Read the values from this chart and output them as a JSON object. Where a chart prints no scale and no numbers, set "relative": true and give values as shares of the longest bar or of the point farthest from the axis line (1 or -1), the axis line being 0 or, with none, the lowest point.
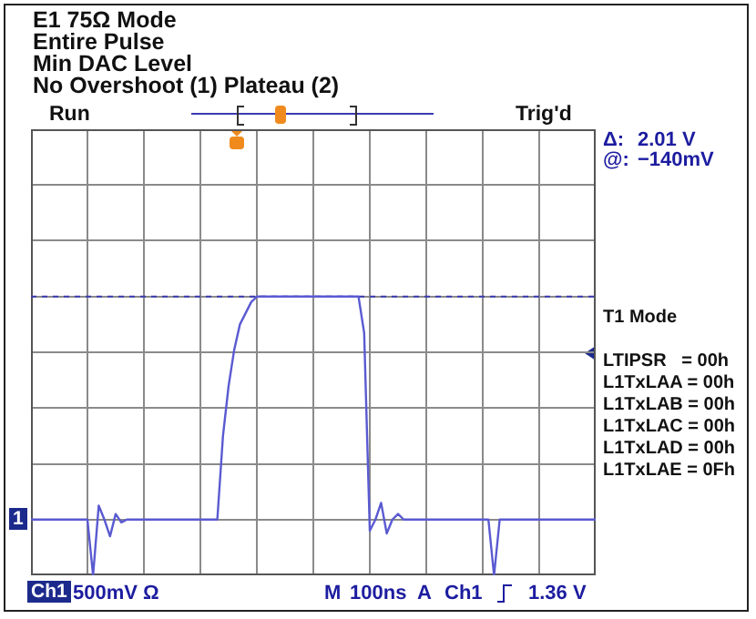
{
  "chart_data": {
    "type": "line",
    "title": "E1 75Ω  Mode",
    "categories": [
      null,
      null,
      null,
      null,
      null,
      null,
      null,
      null,
      null,
      null,
      null,
      null,
      null,
      null,
      null,
      null,
      null,
      null,
      null,
      null,
      null,
      null,
      null,
      null,
      null,
      null,
      null,
      null,
      null,
      null,
      null,
      null,
      null,
      null,
      null,
      null,
      null,
      null,
      null,
      null,
      null,
      null,
      null,
      null,
      null,
      null,
      null,
      null,
      null,
      null,
      null,
      null,
      null,
      null,
      null,
      null,
      null,
      null,
      null,
      null,
      null,
      null,
      null,
      null,
      null,
      null,
      null,
      null,
      null,
      null,
      null,
      null,
      null,
      null,
      null,
      null,
      null,
      null,
      null,
      null,
      null,
      null,
      null,
      null,
      null,
      null,
      null,
      null,
      null,
      null,
      null,
      null,
      null,
      null,
      null,
      null,
      null,
      null,
      null,
      null,
      null
    ],
    "values": [
      0.2,
      0.2,
      0.2,
      0.2,
      0.2,
      0.2,
      0.2,
      0.2,
      0.2,
      0.2,
      0.2,
      0,
      0.25,
      0.2,
      0.14,
      0.22,
      0.19,
      0.2,
      0.2,
      0.2,
      0.2,
      0.2,
      0.2,
      0.2,
      0.2,
      0.2,
      0.2,
      0.2,
      0.2,
      0.2,
      0.2,
      0.2,
      0.2,
      0.2,
      0.5,
      0.68,
      0.81,
      0.9,
      0.94,
      0.98,
      1,
      1,
      1,
      1,
      1,
      1,
      1,
      1,
      1,
      1,
      1,
      1,
      1,
      1,
      1,
      1,
      1,
      1,
      1,
      0.87,
      0.16,
      0.2,
      0.26,
      0.15,
      0.2,
      0.22,
      0.2,
      0.2,
      0.2,
      0.2,
      0.2,
      0.2,
      0.2,
      0.2,
      0.2,
      0.2,
      0.2,
      0.2,
      0.2,
      0.2,
      0.2,
      0.2,
      0,
      0.2,
      0.2,
      0.2,
      0.2,
      0.2,
      0.2,
      0.2,
      0.2,
      0.2,
      0.2,
      0.2,
      0.2,
      0.2,
      0.2,
      0.2,
      0.2,
      0.2,
      0.2
    ],
    "color": "#5a5ad2",
    "relative": true,
    "grid": true,
    "tick_labels": false,
    "marker": "none",
    "line_style": "solid",
    "ref_lines": [
      {
        "axis": "y",
        "value": 1,
        "label": null,
        "color": "#3c3cb4",
        "line_style": "dashed"
      }
    ],
    "annotations": [
      "Entire Pulse",
      "Min DAC Level",
      "No Overshoot (1) Plateau (2)",
      "Run",
      "Trig'd",
      "Δ:",
      "2.01 V",
      "@:",
      "−140mV",
      "T1 Mode",
      "LTIPSR   = 00h",
      "L1TxLAA = 00h",
      "L1TxLAB = 00h",
      "L1TxLAC = 00h",
      "L1TxLAD = 00h",
      "L1TxLAE = 0Fh",
      "1",
      "Ch1",
      "500mV Ω",
      "M",
      "100ns",
      "A",
      "Ch1",
      "1.36 V"
    ]
  }
}
